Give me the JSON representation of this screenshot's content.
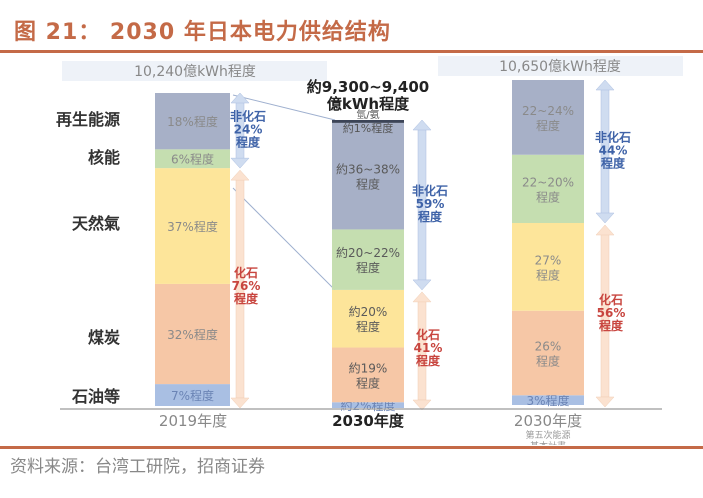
{
  "header": {
    "title": "图 21：  2030 年日本电力供给结构"
  },
  "footer": {
    "source": "资料来源：台湾工研院，招商证券"
  },
  "colors": {
    "title": "#c46a47",
    "renewable": "#a7b0c7",
    "nuclear": "#c5deb0",
    "gas": "#fde59a",
    "coal": "#f6c7a6",
    "oil": "#a9bfe3",
    "hydrogen": "#3c4457",
    "nonfossil_arrow": "#cfdcf0",
    "fossil_arrow": "#fbe2d0",
    "nonfossil_text": "#3f63a8",
    "fossil_text": "#c8453f",
    "label_text": "#8a8a8a"
  },
  "chart_data": {
    "type": "bar",
    "stacked": true,
    "title": "2030 年日本电力供给结构",
    "unit": "%",
    "categories": [
      "2019年度",
      "2030年度",
      "2030年度 第五次能源基本計畫"
    ],
    "category_display": [
      {
        "main": "2019年度",
        "sub": []
      },
      {
        "main": "2030年度",
        "sub": []
      },
      {
        "main": "2030年度",
        "sub": [
          "第五次能源",
          "基本計畫"
        ]
      }
    ],
    "totals": [
      "10,240億kWh程度",
      "約9,300~9,400億kWh程度",
      "10,650億kWh程度"
    ],
    "totals_display": [
      [
        "10,240億kWh程度"
      ],
      [
        "約9,300~9,400",
        "億kWh程度"
      ],
      [
        "10,650億kWh程度"
      ]
    ],
    "row_labels": [
      "再生能源",
      "核能",
      "天然氣",
      "煤炭",
      "石油等"
    ],
    "series": [
      {
        "name": "石油等",
        "key": "oil",
        "values": [
          7,
          2,
          3
        ],
        "labels": [
          [
            "7%程度"
          ],
          [
            "約2%程度"
          ],
          [
            "3%程度"
          ]
        ]
      },
      {
        "name": "煤炭",
        "key": "coal",
        "values": [
          32,
          19,
          26
        ],
        "labels": [
          [
            "32%程度"
          ],
          [
            "約19%",
            "程度"
          ],
          [
            "26%",
            "程度"
          ]
        ]
      },
      {
        "name": "天然氣",
        "key": "gas",
        "values": [
          37,
          20,
          27
        ],
        "labels": [
          [
            "37%程度"
          ],
          [
            "約20%",
            "程度"
          ],
          [
            "27%",
            "程度"
          ]
        ]
      },
      {
        "name": "核能",
        "key": "nuclear",
        "values": [
          6,
          21,
          21
        ],
        "labels": [
          [
            "6%程度"
          ],
          [
            "約20~22%",
            "程度"
          ],
          [
            "22~20%",
            "程度"
          ]
        ]
      },
      {
        "name": "再生能源",
        "key": "renewable",
        "values": [
          18,
          37,
          23
        ],
        "labels": [
          [
            "18%程度"
          ],
          [
            "約36~38%",
            "程度"
          ],
          [
            "22~24%",
            "程度"
          ]
        ]
      },
      {
        "name": "氫/氨",
        "key": "hydrogen",
        "values": [
          0,
          1,
          0
        ],
        "labels": [
          [],
          [
            "氫/氨",
            "約1%程度"
          ],
          []
        ]
      }
    ],
    "annotations": {
      "non_fossil": [
        [
          "非化石",
          "24%",
          "程度"
        ],
        [
          "非化石",
          "59%",
          "程度"
        ],
        [
          "非化石",
          "44%",
          "程度"
        ]
      ],
      "fossil": [
        [
          "化石",
          "76%",
          "程度"
        ],
        [
          "化石",
          "41%",
          "程度"
        ],
        [
          "化石",
          "56%",
          "程度"
        ]
      ]
    },
    "ylim": [
      0,
      100
    ],
    "legend": "left",
    "grid": false
  }
}
